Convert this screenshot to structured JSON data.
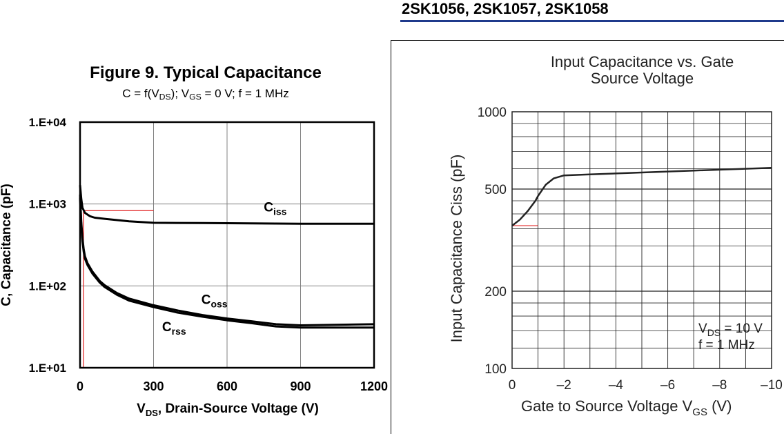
{
  "header": {
    "title": "2SK1056, 2SK1057, 2SK1058"
  },
  "figure9": {
    "title": "Figure 9.  Typical Capacitance",
    "subtitle_parts": [
      "C = f(V",
      "DS",
      "); V",
      "GS",
      " = 0 V; f = 1 MHz"
    ]
  },
  "right_panel": {
    "title_line1": "Input Capacitance vs. Gate",
    "title_line2": "Source Voltage"
  },
  "chart_data": [
    {
      "type": "line",
      "title": "Figure 9.  Typical Capacitance",
      "subtitle": "C = f(VDS); VGS = 0 V; f = 1 MHz",
      "xlabel": "VDS, Drain-Source Voltage (V)",
      "ylabel": "C, Capacitance (pF)",
      "x_scale": "linear",
      "y_scale": "log",
      "xlim": [
        0,
        1200
      ],
      "ylim": [
        10,
        10000
      ],
      "x_ticks": [
        0,
        300,
        600,
        900,
        1200
      ],
      "x_tick_labels": [
        "0",
        "300",
        "600",
        "900",
        "1200"
      ],
      "y_ticks": [
        10,
        100,
        1000,
        10000
      ],
      "y_tick_labels": [
        "1.E+01",
        "1.E+02",
        "1.E+03",
        "1.E+04"
      ],
      "grid": true,
      "series": [
        {
          "name": "Ciss",
          "label_main": "C",
          "label_sub": "iss",
          "label_at": [
            750,
            810
          ],
          "x": [
            0,
            5,
            10,
            20,
            40,
            60,
            100,
            200,
            300,
            500,
            700,
            900,
            1200
          ],
          "y": [
            1700,
            1150,
            900,
            780,
            710,
            680,
            660,
            615,
            590,
            585,
            580,
            575,
            575
          ]
        },
        {
          "name": "Coss",
          "label_main": "C",
          "label_sub": "oss",
          "label_at": [
            495,
            60
          ],
          "x": [
            0,
            5,
            10,
            15,
            20,
            30,
            50,
            80,
            100,
            150,
            200,
            300,
            400,
            500,
            600,
            700,
            800,
            900,
            1200
          ],
          "y": [
            1300,
            600,
            380,
            280,
            230,
            190,
            150,
            115,
            102,
            82,
            70,
            58,
            50,
            44,
            40,
            37,
            34,
            33,
            34
          ]
        },
        {
          "name": "Crss",
          "label_main": "C",
          "label_sub": "rss",
          "label_at": [
            335,
            28
          ],
          "x": [
            0,
            5,
            10,
            15,
            20,
            30,
            50,
            80,
            100,
            150,
            200,
            300,
            400,
            500,
            600,
            700,
            800,
            900,
            1200
          ],
          "y": [
            1200,
            550,
            350,
            260,
            215,
            180,
            142,
            110,
            97,
            78,
            66,
            55,
            47,
            42,
            38,
            35,
            32,
            31,
            31
          ]
        }
      ]
    },
    {
      "type": "line",
      "title": "Input Capacitance vs. Gate Source Voltage",
      "xlabel": "Gate to Source Voltage  VGS  (V)",
      "ylabel": "Input Capacitance  Ciss  (pF)",
      "x_scale": "linear",
      "y_scale": "log",
      "xlim": [
        0,
        -10
      ],
      "ylim": [
        100,
        1000
      ],
      "x_ticks": [
        0,
        -2,
        -4,
        -6,
        -8,
        -10
      ],
      "x_tick_labels": [
        "0",
        "–2",
        "–4",
        "–6",
        "–8",
        "–10"
      ],
      "y_ticks": [
        100,
        200,
        500,
        1000
      ],
      "y_tick_labels": [
        "100",
        "200",
        "500",
        "1000"
      ],
      "grid": true,
      "legend_position": "bottom-right",
      "annotation": {
        "line1_main": "V",
        "line1_sub": "DS",
        "line1_rest": " = 10 V",
        "line2": "f = 1 MHz"
      },
      "series": [
        {
          "x": [
            0,
            -0.3,
            -0.6,
            -0.9,
            -1.0,
            -1.3,
            -1.6,
            -2,
            -3,
            -5,
            -7,
            -10
          ],
          "y": [
            360,
            380,
            410,
            450,
            470,
            520,
            550,
            565,
            570,
            580,
            590,
            605
          ]
        }
      ]
    }
  ]
}
